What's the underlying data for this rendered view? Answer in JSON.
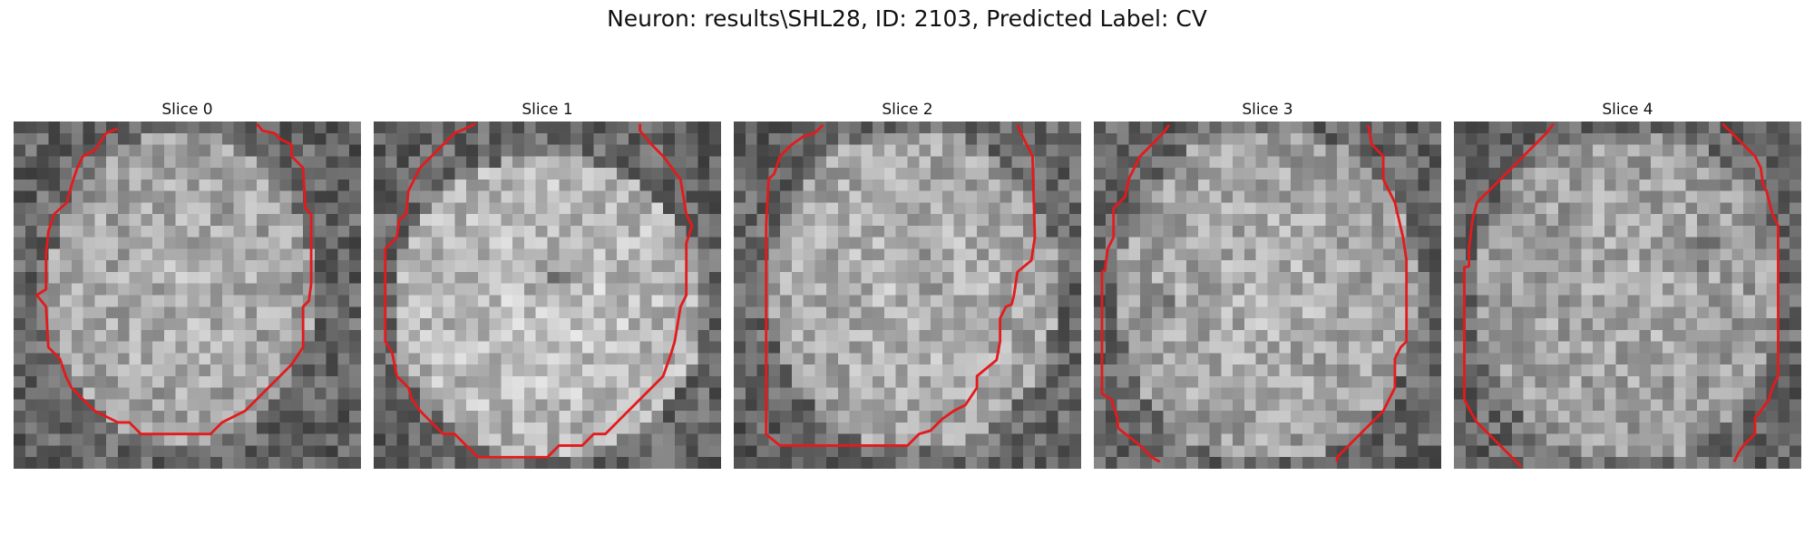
{
  "figure": {
    "title": "Neuron: results\\SHL28, ID: 2103, Predicted Label: CV"
  },
  "panels": [
    {
      "title": "Slice 0"
    },
    {
      "title": "Slice 1"
    },
    {
      "title": "Slice 2"
    },
    {
      "title": "Slice 3"
    },
    {
      "title": "Slice 4"
    }
  ],
  "colors": {
    "contour": "#e41a1c"
  }
}
